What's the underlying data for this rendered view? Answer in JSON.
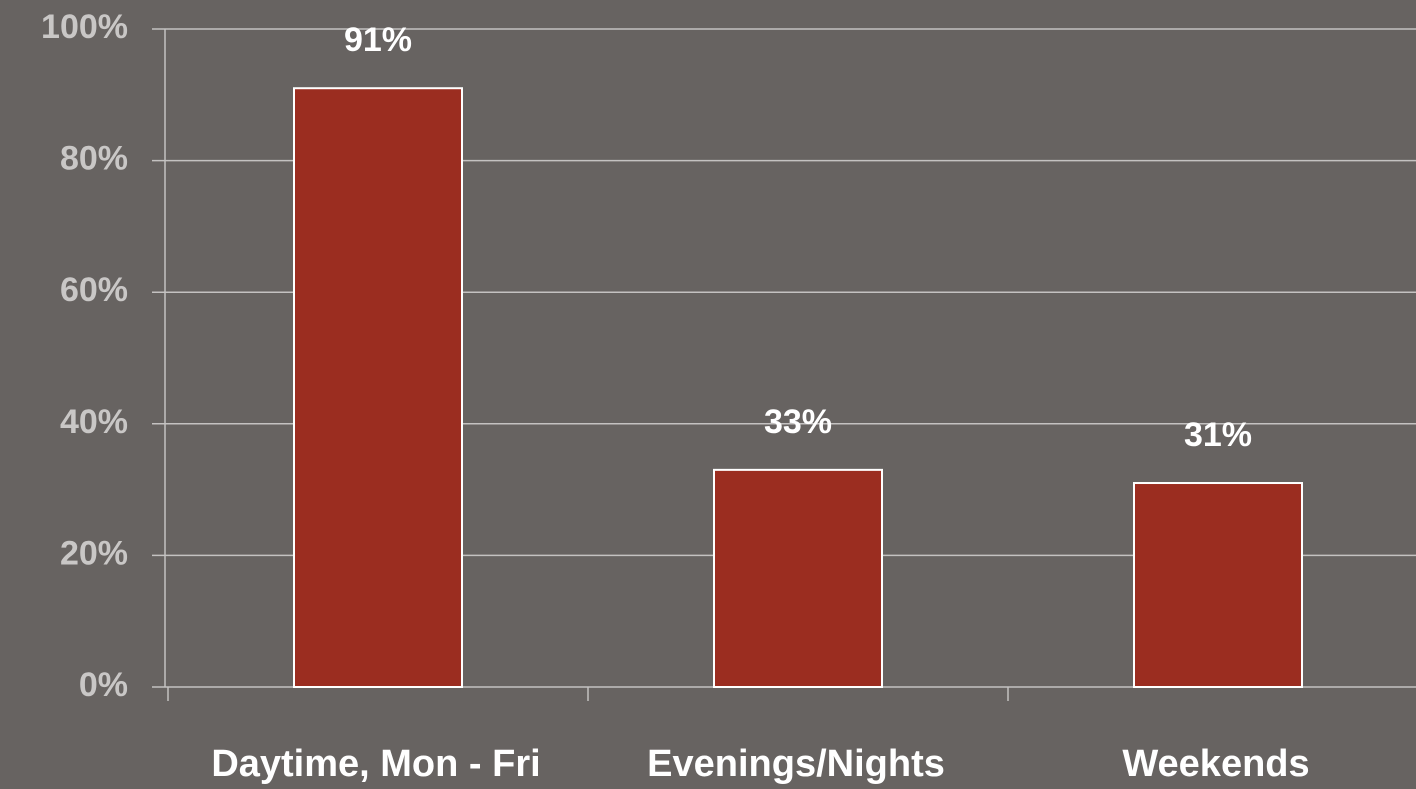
{
  "chart_data": {
    "type": "bar",
    "categories": [
      "Daytime, Mon - Fri",
      "Evenings/Nights",
      "Weekends"
    ],
    "values": [
      91,
      33,
      31
    ],
    "value_labels": [
      "91%",
      "33%",
      "31%"
    ],
    "color": "#9b2d20",
    "ylim": [
      0,
      100
    ],
    "yticks": [
      {
        "value": 0,
        "label": "0%"
      },
      {
        "value": 20,
        "label": "20%"
      },
      {
        "value": 40,
        "label": "40%"
      },
      {
        "value": 60,
        "label": "60%"
      },
      {
        "value": 80,
        "label": "80%"
      },
      {
        "value": 100,
        "label": "100%"
      }
    ],
    "grid": true
  }
}
